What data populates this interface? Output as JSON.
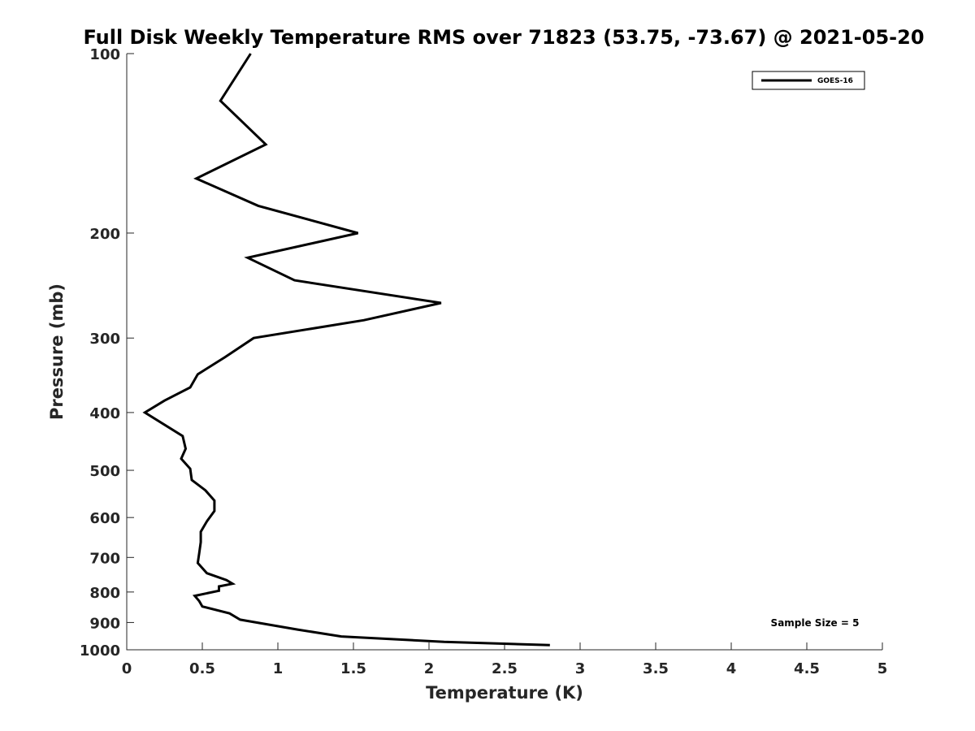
{
  "chart_data": {
    "type": "line",
    "title": "Full Disk Weekly Temperature RMS over 71823 (53.75, -73.67) @ 2021-05-20",
    "xlabel": "Temperature (K)",
    "ylabel": "Pressure (mb)",
    "xlim": [
      0,
      5
    ],
    "ylim": [
      100,
      1000
    ],
    "y_scale": "log",
    "y_reversed": true,
    "x_ticks": [
      0,
      0.5,
      1,
      1.5,
      2,
      2.5,
      3,
      3.5,
      4,
      4.5,
      5
    ],
    "x_tick_labels": [
      "0",
      "0.5",
      "1",
      "1.5",
      "2",
      "2.5",
      "3",
      "3.5",
      "4",
      "4.5",
      "5"
    ],
    "y_ticks": [
      100,
      200,
      300,
      400,
      500,
      600,
      700,
      800,
      900,
      1000
    ],
    "y_tick_labels": [
      "100",
      "200",
      "300",
      "400",
      "500",
      "600",
      "700",
      "800",
      "900",
      "1000"
    ],
    "grid": false,
    "legend_position": "top-right",
    "annotation": "Sample Size = 5",
    "series": [
      {
        "name": "GOES-16",
        "color": "#000000",
        "x": [
          0.82,
          0.62,
          0.92,
          0.46,
          0.87,
          1.53,
          0.8,
          1.11,
          2.08,
          1.57,
          0.84,
          0.65,
          0.47,
          0.42,
          0.25,
          0.12,
          0.37,
          0.39,
          0.36,
          0.42,
          0.43,
          0.52,
          0.58,
          0.58,
          0.53,
          0.49,
          0.49,
          0.48,
          0.47,
          0.53,
          0.66,
          0.7,
          0.61,
          0.61,
          0.45,
          0.48,
          0.5,
          0.68,
          0.75,
          1.13,
          1.42,
          2.1,
          2.8
        ],
        "y": [
          100,
          120,
          142,
          162,
          180,
          200,
          220,
          240,
          262,
          280,
          300,
          323,
          345,
          363,
          382,
          400,
          438,
          460,
          478,
          497,
          519,
          540,
          562,
          585,
          609,
          634,
          660,
          687,
          715,
          744,
          764,
          775,
          783,
          796,
          812,
          829,
          846,
          869,
          890,
          925,
          950,
          970,
          982
        ]
      }
    ]
  }
}
